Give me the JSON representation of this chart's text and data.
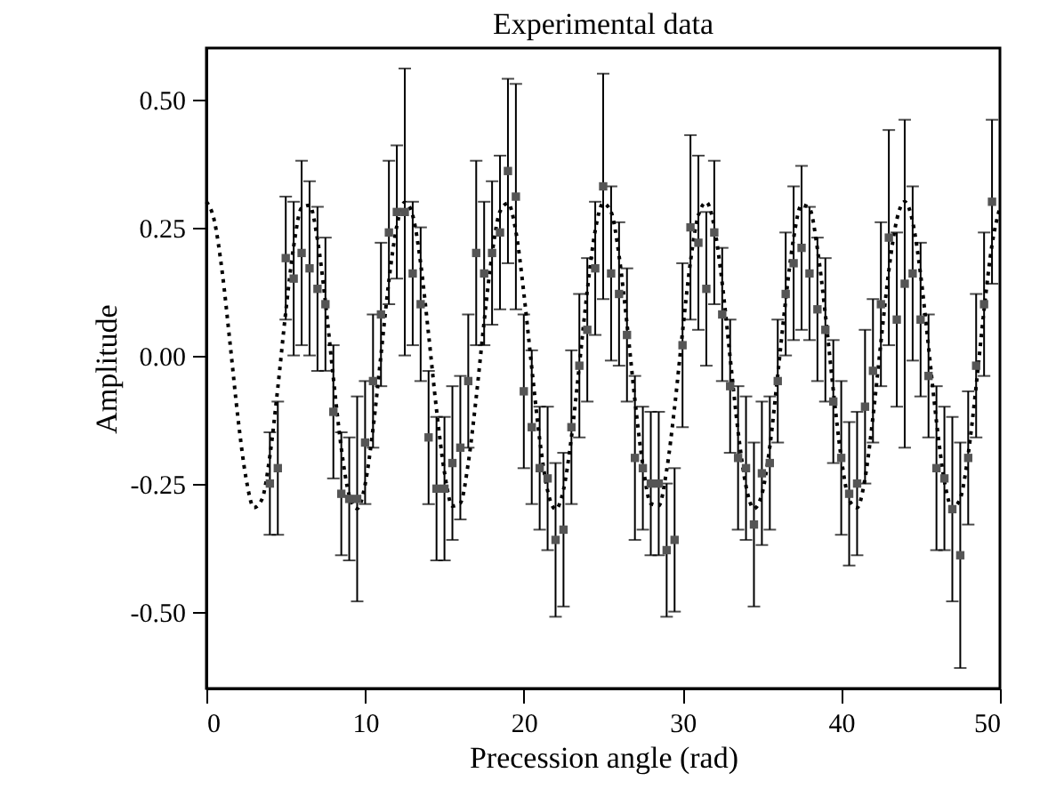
{
  "chart_data": {
    "type": "scatter",
    "title": "Experimental data",
    "xlabel": "Precession angle (rad)",
    "ylabel": "Amplitude",
    "xlim": [
      0,
      50
    ],
    "xticks": [
      0,
      10,
      20,
      30,
      40,
      50
    ],
    "ylim": [
      -0.65,
      0.6
    ],
    "yticks": [
      {
        "value": -0.5,
        "label": "-0.50"
      },
      {
        "value": -0.25,
        "label": "-0.25"
      },
      {
        "value": 0,
        "label": "0.00"
      },
      {
        "value": 0.25,
        "label": "0.25"
      },
      {
        "value": 0.5,
        "label": "0.50"
      }
    ],
    "grid": false,
    "series": [
      {
        "type": "line",
        "color": "#000000",
        "line_style": "dotted",
        "marker": "none",
        "x": [
          0,
          0.5,
          1,
          1.5,
          2,
          2.5,
          3,
          3.5,
          4,
          4.5,
          5,
          5.5,
          6,
          6.5,
          7,
          7.5,
          8,
          8.5,
          9,
          9.5,
          10,
          10.5,
          11,
          11.5,
          12,
          12.5,
          13,
          13.5,
          14,
          14.5,
          15,
          15.5,
          16,
          16.5,
          17,
          17.5,
          18,
          18.5,
          19,
          19.5,
          20,
          20.5,
          21,
          21.5,
          22,
          22.5,
          23,
          23.5,
          24,
          24.5,
          25,
          25.5,
          26,
          26.5,
          27,
          27.5,
          28,
          28.5,
          29,
          29.5,
          30,
          30.5,
          31,
          31.5,
          32,
          32.5,
          33,
          33.5,
          34,
          34.5,
          35,
          35.5,
          36,
          36.5,
          37,
          37.5,
          38,
          38.5,
          39,
          39.5,
          40,
          40.5,
          41,
          41.5,
          42,
          42.5,
          43,
          43.5,
          44,
          44.5,
          45,
          45.5,
          46,
          46.5,
          47,
          47.5,
          48,
          48.5,
          49,
          49.5,
          50
        ],
        "values": [
          0.3,
          0.263,
          0.162,
          0.021,
          -0.125,
          -0.24,
          -0.297,
          -0.281,
          -0.196,
          -0.063,
          0.085,
          0.213,
          0.288,
          0.293,
          0.226,
          0.104,
          -0.044,
          -0.181,
          -0.273,
          -0.299,
          -0.252,
          -0.143,
          0.001,
          0.146,
          0.253,
          0.299,
          0.273,
          0.18,
          0.041,
          -0.106,
          -0.228,
          -0.294,
          -0.288,
          -0.21,
          -0.082,
          0.066,
          0.198,
          0.281,
          0.297,
          0.242,
          0.122,
          -0.024,
          -0.164,
          -0.264,
          -0.3,
          -0.262,
          -0.16,
          -0.019,
          0.127,
          0.244,
          0.297,
          0.28,
          0.195,
          0.062,
          -0.087,
          -0.214,
          -0.289,
          -0.293,
          -0.224,
          -0.101,
          0.046,
          0.183,
          0.274,
          0.299,
          0.251,
          0.141,
          -0.004,
          -0.148,
          -0.255,
          -0.299,
          -0.271,
          -0.178,
          -0.038,
          0.108,
          0.229,
          0.294,
          0.287,
          0.208,
          0.08,
          -0.068,
          -0.2,
          -0.282,
          -0.297,
          -0.24,
          -0.12,
          0.026,
          0.166,
          0.265,
          0.3,
          0.261,
          0.158,
          0.017,
          -0.129,
          -0.245,
          -0.298,
          -0.279,
          -0.193,
          -0.06,
          0.089,
          0.216,
          0.289
        ]
      },
      {
        "color": "#555555",
        "marker": "square",
        "x": [
          4,
          4.5,
          5,
          5.5,
          6,
          6.5,
          7,
          7.5,
          8,
          8.5,
          9,
          9.5,
          10,
          10.5,
          11,
          11.5,
          12,
          12.5,
          13,
          13.5,
          14,
          14.5,
          15,
          15.5,
          16,
          16.5,
          17,
          17.5,
          18,
          18.5,
          19,
          19.5,
          20,
          20.5,
          21,
          21.5,
          22,
          22.5,
          23,
          23.5,
          24,
          24.5,
          25,
          25.5,
          26,
          26.5,
          27,
          27.5,
          28,
          28.5,
          29,
          29.5,
          30,
          30.5,
          31,
          31.5,
          32,
          32.5,
          33,
          33.5,
          34,
          34.5,
          35,
          35.5,
          36,
          36.5,
          37,
          37.5,
          38,
          38.5,
          39,
          39.5,
          40,
          40.5,
          41,
          41.5,
          42,
          42.5,
          43,
          43.5,
          44,
          44.5,
          45,
          45.5,
          46,
          46.5,
          47,
          47.5,
          48,
          48.5,
          49,
          49.5
        ],
        "values": [
          -0.25,
          -0.22,
          0.19,
          0.15,
          0.2,
          0.17,
          0.13,
          0.1,
          -0.11,
          -0.27,
          -0.28,
          -0.28,
          -0.17,
          -0.05,
          0.08,
          0.24,
          0.28,
          0.28,
          0.16,
          0.1,
          -0.16,
          -0.26,
          -0.26,
          -0.21,
          -0.18,
          -0.05,
          0.2,
          0.16,
          0.2,
          0.24,
          0.36,
          0.31,
          -0.07,
          -0.14,
          -0.22,
          -0.24,
          -0.36,
          -0.34,
          -0.14,
          -0.02,
          0.05,
          0.17,
          0.33,
          0.16,
          0.12,
          0.04,
          -0.2,
          -0.22,
          -0.25,
          -0.25,
          -0.38,
          -0.36,
          0.02,
          0.25,
          0.22,
          0.13,
          0.24,
          0.08,
          -0.06,
          -0.2,
          -0.22,
          -0.33,
          -0.23,
          -0.21,
          -0.05,
          0.12,
          0.18,
          0.21,
          0.16,
          0.09,
          0.05,
          -0.09,
          -0.2,
          -0.27,
          -0.25,
          -0.1,
          -0.03,
          0.1,
          0.23,
          0.07,
          0.14,
          0.16,
          0.07,
          -0.04,
          -0.22,
          -0.24,
          -0.3,
          -0.39,
          -0.2,
          -0.02,
          0.1,
          0.3
        ],
        "errors": [
          0.1,
          0.13,
          0.12,
          0.15,
          0.18,
          0.17,
          0.16,
          0.13,
          0.13,
          0.12,
          0.12,
          0.2,
          0.12,
          0.13,
          0.14,
          0.14,
          0.13,
          0.28,
          0.14,
          0.15,
          0.13,
          0.14,
          0.14,
          0.15,
          0.14,
          0.13,
          0.18,
          0.14,
          0.14,
          0.15,
          0.18,
          0.22,
          0.15,
          0.15,
          0.12,
          0.14,
          0.15,
          0.15,
          0.15,
          0.14,
          0.14,
          0.13,
          0.22,
          0.17,
          0.14,
          0.13,
          0.16,
          0.12,
          0.14,
          0.14,
          0.13,
          0.14,
          0.16,
          0.18,
          0.17,
          0.15,
          0.14,
          0.13,
          0.13,
          0.14,
          0.14,
          0.16,
          0.14,
          0.13,
          0.12,
          0.12,
          0.15,
          0.16,
          0.13,
          0.14,
          0.14,
          0.12,
          0.15,
          0.14,
          0.14,
          0.15,
          0.14,
          0.16,
          0.21,
          0.17,
          0.32,
          0.17,
          0.15,
          0.12,
          0.16,
          0.14,
          0.18,
          0.22,
          0.13,
          0.14,
          0.14,
          0.16
        ]
      }
    ]
  }
}
